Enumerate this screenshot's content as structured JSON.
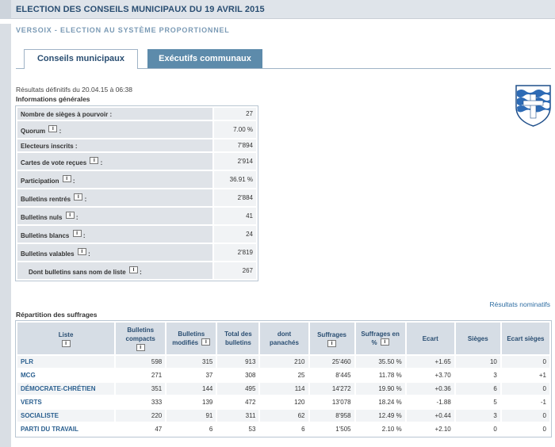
{
  "header": {
    "title": "ELECTION DES CONSEILS MUNICIPAUX DU 19 AVRIL 2015"
  },
  "subtitle": "VERSOIX - ELECTION AU SYSTÈME PROPORTIONNEL",
  "tabs": [
    {
      "label": "Conseils municipaux",
      "active": true
    },
    {
      "label": "Exécutifs communaux",
      "active": false
    }
  ],
  "results_date": "Résultats définitifs du 20.04.15 à 06:38",
  "info_heading": "Informations générales",
  "info_icon": "i",
  "info_rows": [
    {
      "label": "Nombre de sièges à pourvoir :",
      "value": "27"
    },
    {
      "label": "Quorum",
      "suffix": ":",
      "value": "7.00 %"
    },
    {
      "label": "Electeurs inscrits :",
      "value": "7'894"
    },
    {
      "label": "Cartes de vote reçues",
      "suffix": ":",
      "value": "2'914"
    },
    {
      "label": "Participation",
      "suffix": ":",
      "value": "36.91 %"
    },
    {
      "label": "Bulletins rentrés",
      "suffix": ":",
      "value": "2'884"
    },
    {
      "label": "Bulletins nuls",
      "suffix": ":",
      "value": "41"
    },
    {
      "label": "Bulletins blancs",
      "suffix": ":",
      "value": "24"
    },
    {
      "label": "Bulletins valables",
      "suffix": ":",
      "value": "2'819"
    },
    {
      "label": "Dont bulletins sans nom de liste",
      "suffix": ":",
      "value": "267"
    }
  ],
  "nominatif_link": "Résultats nominatifs",
  "repartition_heading": "Répartition des suffrages",
  "results_headers": {
    "liste": "Liste",
    "compacts_1": "Bulletins",
    "compacts_2": "compacts",
    "modifies_1": "Bulletins",
    "modifies_2": "modifiés",
    "total_1": "Total des",
    "total_2": "bulletins",
    "panaches_1": "dont",
    "panaches_2": "panachés",
    "suffrages": "Suffrages",
    "pct_1": "Suffrages en",
    "pct_2": "%",
    "ecart": "Ecart",
    "sieges": "Sièges",
    "ecart_sieges": "Ecart sièges"
  },
  "results_rows": [
    {
      "liste": "PLR",
      "compacts": "598",
      "modifies": "315",
      "total": "913",
      "panaches": "210",
      "suffrages": "25'460",
      "pct": "35.50 %",
      "ecart": "+1.65",
      "sieges": "10",
      "ecart_sieges": "0"
    },
    {
      "liste": "MCG",
      "compacts": "271",
      "modifies": "37",
      "total": "308",
      "panaches": "25",
      "suffrages": "8'445",
      "pct": "11.78 %",
      "ecart": "+3.70",
      "sieges": "3",
      "ecart_sieges": "+1"
    },
    {
      "liste": "DÉMOCRATE-CHRÉTIEN",
      "compacts": "351",
      "modifies": "144",
      "total": "495",
      "panaches": "114",
      "suffrages": "14'272",
      "pct": "19.90 %",
      "ecart": "+0.36",
      "sieges": "6",
      "ecart_sieges": "0"
    },
    {
      "liste": "VERTS",
      "compacts": "333",
      "modifies": "139",
      "total": "472",
      "panaches": "120",
      "suffrages": "13'078",
      "pct": "18.24 %",
      "ecart": "-1.88",
      "sieges": "5",
      "ecart_sieges": "-1"
    },
    {
      "liste": "SOCIALISTE",
      "compacts": "220",
      "modifies": "91",
      "total": "311",
      "panaches": "62",
      "suffrages": "8'958",
      "pct": "12.49 %",
      "ecart": "+0.44",
      "sieges": "3",
      "ecart_sieges": "0"
    },
    {
      "liste": "PARTI DU TRAVAIL",
      "compacts": "47",
      "modifies": "6",
      "total": "53",
      "panaches": "6",
      "suffrages": "1'505",
      "pct": "2.10 %",
      "ecart": "+2.10",
      "sieges": "0",
      "ecart_sieges": "0"
    }
  ],
  "colors": {
    "accent": "#2a4e72",
    "tab_inactive": "#5d8bab",
    "link": "#2f6ea3",
    "party": "#2a5f8f"
  },
  "icons": {
    "info": "info-icon",
    "crest": "versoix-crest-icon"
  }
}
